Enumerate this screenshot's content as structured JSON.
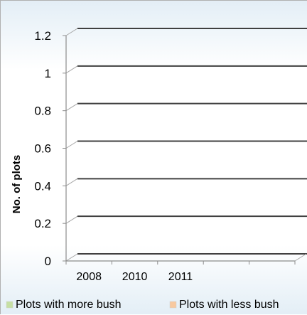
{
  "chart_data": {
    "type": "bar",
    "categories": [
      "2008",
      "2010",
      "2011",
      "",
      ""
    ],
    "series": [
      {
        "name": "Plots with more bush",
        "values": [
          0,
          0,
          0,
          0,
          0
        ],
        "color": "#c6dfa4"
      },
      {
        "name": "Plots with less bush",
        "values": [
          0,
          0,
          0,
          0,
          0
        ],
        "color": "#f8c9a0"
      }
    ],
    "title": "",
    "xlabel": "",
    "ylabel": "No. of plots",
    "ylim": [
      0,
      1.2
    ],
    "yticks": [
      "0",
      "0.2",
      "0.4",
      "0.6",
      "0.8",
      "1",
      "1.2"
    ],
    "grid": true,
    "three_d": true,
    "legend_position": "bottom"
  }
}
